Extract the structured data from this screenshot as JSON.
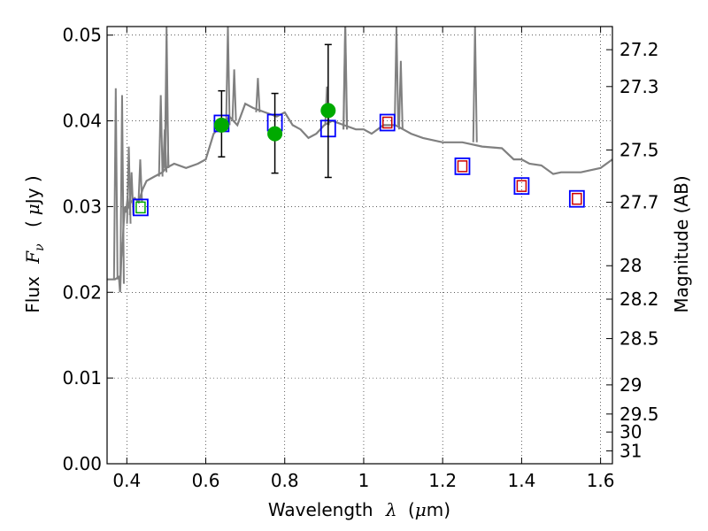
{
  "chart_data": {
    "type": "scatter",
    "title": "",
    "xlabel": "Wavelength",
    "xlabel_symbol": "λ",
    "xlabel_unit_open": "(",
    "xlabel_unit_mu": "μ",
    "xlabel_unit_close": "m)",
    "ylabel": "Flux",
    "ylabel_symbol": "F",
    "ylabel_subscript": "ν",
    "ylabel_unit_open": "(",
    "ylabel_unit_mu": "μ",
    "ylabel_unit_close": "Jy )",
    "y2label": "Magnitude (AB)",
    "xlim": [
      0.35,
      1.63
    ],
    "ylim": [
      0.0,
      0.051
    ],
    "grid": true,
    "x_ticks": [
      0.4,
      0.6,
      0.8,
      1.0,
      1.2,
      1.4,
      1.6
    ],
    "x_tick_labels": [
      "0.4",
      "0.6",
      "0.8",
      "1",
      "1.2",
      "1.4",
      "1.6"
    ],
    "y_ticks": [
      0.0,
      0.01,
      0.02,
      0.03,
      0.04,
      0.05
    ],
    "y_tick_labels": [
      "0.00",
      "0.01",
      "0.02",
      "0.03",
      "0.04",
      "0.05"
    ],
    "y2_ticks": [
      {
        "label": "27.2",
        "flux": 0.0483
      },
      {
        "label": "27.3",
        "flux": 0.044
      },
      {
        "label": "27.5",
        "flux": 0.0366
      },
      {
        "label": "27.7",
        "flux": 0.0305
      },
      {
        "label": "28",
        "flux": 0.0231
      },
      {
        "label": "28.2",
        "flux": 0.0192
      },
      {
        "label": "28.5",
        "flux": 0.0146
      },
      {
        "label": "29",
        "flux": 0.0092
      },
      {
        "label": "29.5",
        "flux": 0.0058
      },
      {
        "label": "30",
        "flux": 0.0037
      },
      {
        "label": "31",
        "flux": 0.0015
      }
    ],
    "series": [
      {
        "kind": "model_spectrum",
        "color": "#808080",
        "x": [
          0.35,
          0.37,
          0.38,
          0.383,
          0.386,
          0.39,
          0.392,
          0.395,
          0.398,
          0.402,
          0.405,
          0.41,
          0.42,
          0.43,
          0.44,
          0.45,
          0.47,
          0.49,
          0.5,
          0.52,
          0.55,
          0.58,
          0.6,
          0.62,
          0.64,
          0.66,
          0.68,
          0.7,
          0.72,
          0.75,
          0.78,
          0.8,
          0.82,
          0.84,
          0.86,
          0.88,
          0.9,
          0.92,
          0.95,
          0.98,
          1.0,
          1.02,
          1.05,
          1.08,
          1.1,
          1.12,
          1.15,
          1.2,
          1.25,
          1.3,
          1.35,
          1.38,
          1.4,
          1.42,
          1.45,
          1.48,
          1.5,
          1.55,
          1.6,
          1.63
        ],
        "y": [
          0.0215,
          0.0215,
          0.0218,
          0.02,
          0.024,
          0.026,
          0.028,
          0.03,
          0.0293,
          0.031,
          0.03,
          0.0305,
          0.031,
          0.0305,
          0.032,
          0.033,
          0.0335,
          0.034,
          0.0345,
          0.035,
          0.0345,
          0.035,
          0.0355,
          0.0385,
          0.0395,
          0.0405,
          0.0395,
          0.042,
          0.0415,
          0.041,
          0.0405,
          0.041,
          0.0395,
          0.039,
          0.038,
          0.0385,
          0.0395,
          0.04,
          0.0395,
          0.039,
          0.039,
          0.0385,
          0.0395,
          0.0395,
          0.039,
          0.0385,
          0.038,
          0.0375,
          0.0375,
          0.037,
          0.0368,
          0.0355,
          0.0355,
          0.035,
          0.0348,
          0.0338,
          0.034,
          0.034,
          0.0345,
          0.0355
        ],
        "spikes": [
          {
            "x": 0.372,
            "depth_to": 0.0215,
            "peak": 0.0438
          },
          {
            "x": 0.388,
            "depth_to": 0.021,
            "peak": 0.043
          },
          {
            "x": 0.405,
            "depth_to": 0.028,
            "peak": 0.037
          },
          {
            "x": 0.412,
            "depth_to": 0.029,
            "peak": 0.034
          },
          {
            "x": 0.434,
            "depth_to": 0.0305,
            "peak": 0.0355
          },
          {
            "x": 0.486,
            "depth_to": 0.0335,
            "peak": 0.043
          },
          {
            "x": 0.496,
            "depth_to": 0.034,
            "peak": 0.039
          },
          {
            "x": 0.501,
            "depth_to": 0.0345,
            "peak": 0.045
          },
          {
            "x": 0.5007,
            "depth_to": 0.0345,
            "peak": 0.051
          },
          {
            "x": 0.656,
            "depth_to": 0.0395,
            "peak": 0.051
          },
          {
            "x": 0.672,
            "depth_to": 0.04,
            "peak": 0.046
          },
          {
            "x": 0.732,
            "depth_to": 0.041,
            "peak": 0.045
          },
          {
            "x": 0.907,
            "depth_to": 0.0395,
            "peak": 0.044
          },
          {
            "x": 0.953,
            "depth_to": 0.039,
            "peak": 0.051
          },
          {
            "x": 0.9535,
            "depth_to": 0.039,
            "peak": 0.051
          },
          {
            "x": 1.083,
            "depth_to": 0.0395,
            "peak": 0.051
          },
          {
            "x": 1.094,
            "depth_to": 0.039,
            "peak": 0.047
          },
          {
            "x": 1.282,
            "depth_to": 0.0375,
            "peak": 0.051
          }
        ]
      },
      {
        "name": "",
        "kind": "model_photometry_blue",
        "color": "#0000ff",
        "x": [
          0.435,
          0.64,
          0.775,
          0.91
        ],
        "y": [
          0.0299,
          0.0397,
          0.0398,
          0.0391
        ]
      },
      {
        "name": "",
        "kind": "model_photometry_red",
        "color_outer": "#0000ff",
        "color_inner": "#cc0000",
        "x": [
          1.06,
          1.25,
          1.4,
          1.54
        ],
        "y": [
          0.0398,
          0.0347,
          0.0324,
          0.0309
        ]
      },
      {
        "name": "",
        "kind": "observed",
        "color": "#00aa00",
        "x": [
          0.64,
          0.775,
          0.91
        ],
        "y": [
          0.0395,
          0.0385,
          0.0412
        ],
        "yerr_low": [
          0.0037,
          0.0046,
          0.0078
        ],
        "yerr_high": [
          0.004,
          0.0047,
          0.0077
        ]
      },
      {
        "name": "",
        "kind": "observed_small",
        "color": "#00aa00",
        "x": [
          0.435
        ],
        "y": [
          0.0299
        ]
      }
    ]
  }
}
